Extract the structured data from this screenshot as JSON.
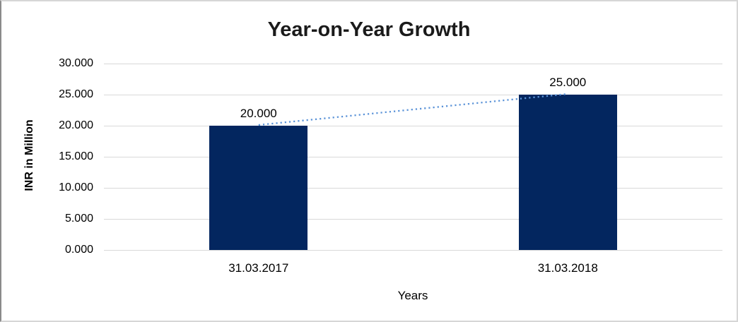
{
  "chart_data": {
    "type": "bar",
    "title": "Year-on-Year Growth",
    "xlabel": "Years",
    "ylabel": "INR in Million",
    "categories": [
      "31.03.2017",
      "31.03.2018"
    ],
    "series": [
      {
        "name": "INR in Million",
        "values": [
          20,
          25
        ]
      }
    ],
    "value_labels": [
      "20.000",
      "25.000"
    ],
    "yticks": [
      {
        "value": 30,
        "label": "30.000"
      },
      {
        "value": 25,
        "label": "25.000"
      },
      {
        "value": 20,
        "label": "20.000"
      },
      {
        "value": 15,
        "label": "15.000"
      },
      {
        "value": 10,
        "label": "10.000"
      },
      {
        "value": 5,
        "label": "5.000"
      },
      {
        "value": 0,
        "label": "0.000"
      }
    ],
    "ylim": [
      0,
      30
    ],
    "grid": "horizontal",
    "legend": "none",
    "colors": {
      "bar": "#03265f",
      "trendline": "#5b93d8",
      "gridline": "#d9d9d9",
      "title_text": "#1a1a1a",
      "axis_text": "#000000",
      "background": "#ffffff"
    },
    "trendline": {
      "style": "dotted",
      "connects": "bar tops (20 to 25)"
    }
  }
}
